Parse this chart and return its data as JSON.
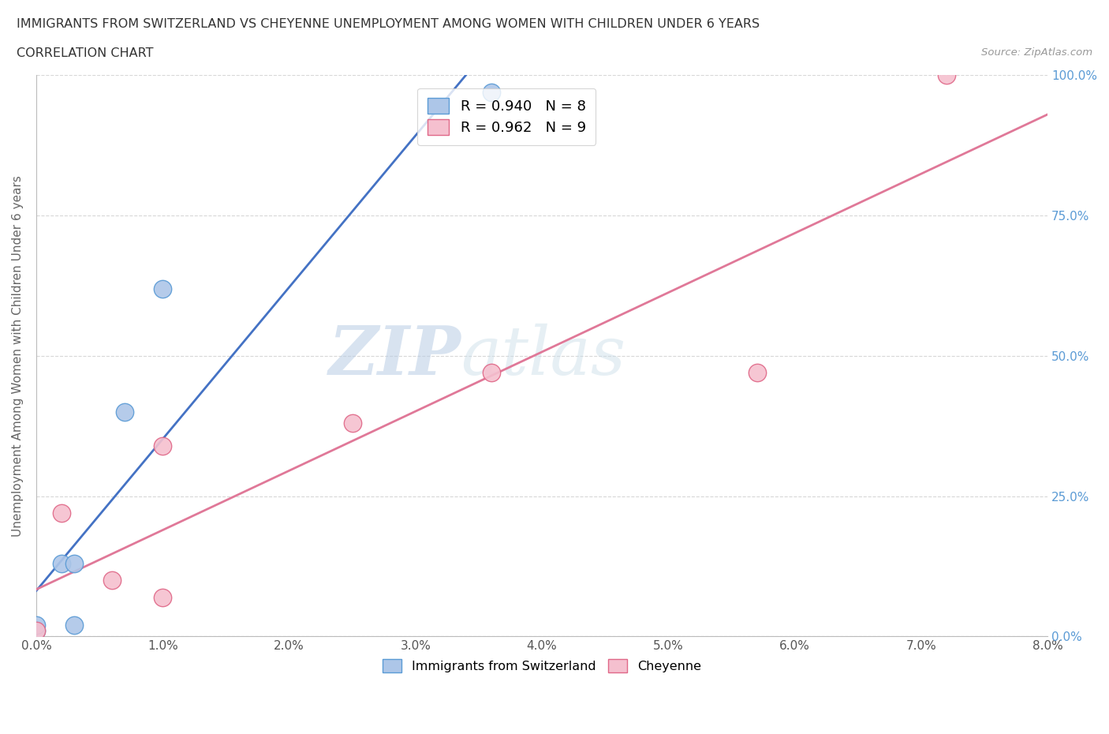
{
  "title_line1": "IMMIGRANTS FROM SWITZERLAND VS CHEYENNE UNEMPLOYMENT AMONG WOMEN WITH CHILDREN UNDER 6 YEARS",
  "title_line2": "CORRELATION CHART",
  "source_text": "Source: ZipAtlas.com",
  "ylabel_label": "Unemployment Among Women with Children Under 6 years",
  "x_min": 0.0,
  "x_max": 0.08,
  "y_min": 0.0,
  "y_max": 1.0,
  "swiss_x": [
    0.0,
    0.0,
    0.002,
    0.003,
    0.003,
    0.007,
    0.01,
    0.036
  ],
  "swiss_y": [
    0.01,
    0.02,
    0.13,
    0.13,
    0.02,
    0.4,
    0.62,
    0.97
  ],
  "cheyenne_x": [
    0.0,
    0.002,
    0.006,
    0.01,
    0.01,
    0.025,
    0.036,
    0.057,
    0.072
  ],
  "cheyenne_y": [
    0.01,
    0.22,
    0.1,
    0.34,
    0.07,
    0.38,
    0.47,
    0.47,
    1.0
  ],
  "swiss_color": "#adc6e8",
  "swiss_edge_color": "#5b9bd5",
  "cheyenne_color": "#f5c0cf",
  "cheyenne_edge_color": "#e06888",
  "swiss_line_color": "#4472c4",
  "cheyenne_line_color": "#e07898",
  "r_swiss": "0.940",
  "n_swiss": "8",
  "r_cheyenne": "0.962",
  "n_cheyenne": "9",
  "legend_swiss_label": "Immigrants from Switzerland",
  "legend_cheyenne_label": "Cheyenne",
  "watermark_zip": "ZIP",
  "watermark_atlas": "atlas",
  "grid_color": "#d8d8d8",
  "background_color": "#ffffff",
  "scatter_size": 260
}
